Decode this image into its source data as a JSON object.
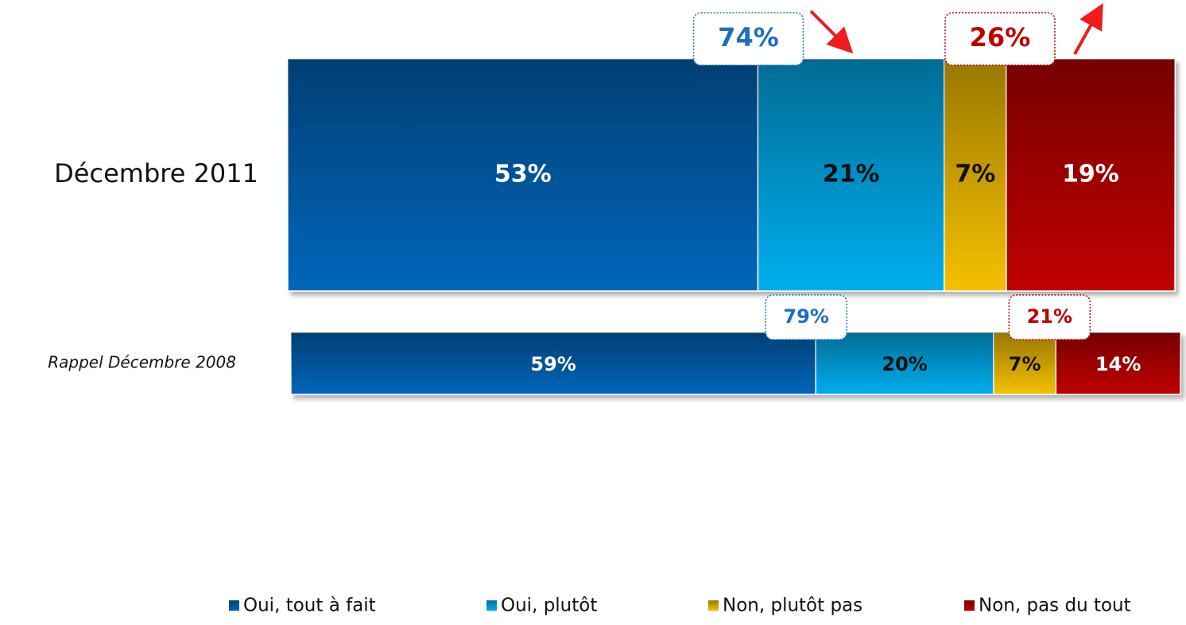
{
  "chart_data": {
    "type": "stacked-bar",
    "orientation": "horizontal",
    "categories": [
      "Décembre 2011",
      "Rappel Décembre 2008"
    ],
    "xlim": [
      0,
      100
    ],
    "series": [
      {
        "name": "Oui, tout à fait",
        "color": "#0066bb",
        "label_color": "#ffffff",
        "values": [
          53,
          59
        ],
        "value_labels": [
          "53%",
          "59%"
        ]
      },
      {
        "name": "Oui, plutôt",
        "color": "#00aeef",
        "label_color": "#111111",
        "values": [
          21,
          20
        ],
        "value_labels": [
          "21%",
          "20%"
        ]
      },
      {
        "name": "Non, plutôt pas",
        "color": "#f5c000",
        "label_color": "#111111",
        "values": [
          7,
          7
        ],
        "value_labels": [
          "7%",
          "7%"
        ]
      },
      {
        "name": "Non, pas du tout",
        "color": "#c00000",
        "label_color": "#ffffff",
        "values": [
          19,
          14
        ],
        "value_labels": [
          "19%",
          "14%"
        ]
      }
    ],
    "annotations": {
      "oui": {
        "color": "#1a70c0",
        "values": [
          74,
          79
        ],
        "value_labels": [
          "74%",
          "79%"
        ]
      },
      "non": {
        "color": "#c00000",
        "values": [
          26,
          21
        ],
        "value_labels": [
          "26%",
          "21%"
        ]
      }
    },
    "legend": "bottom"
  }
}
